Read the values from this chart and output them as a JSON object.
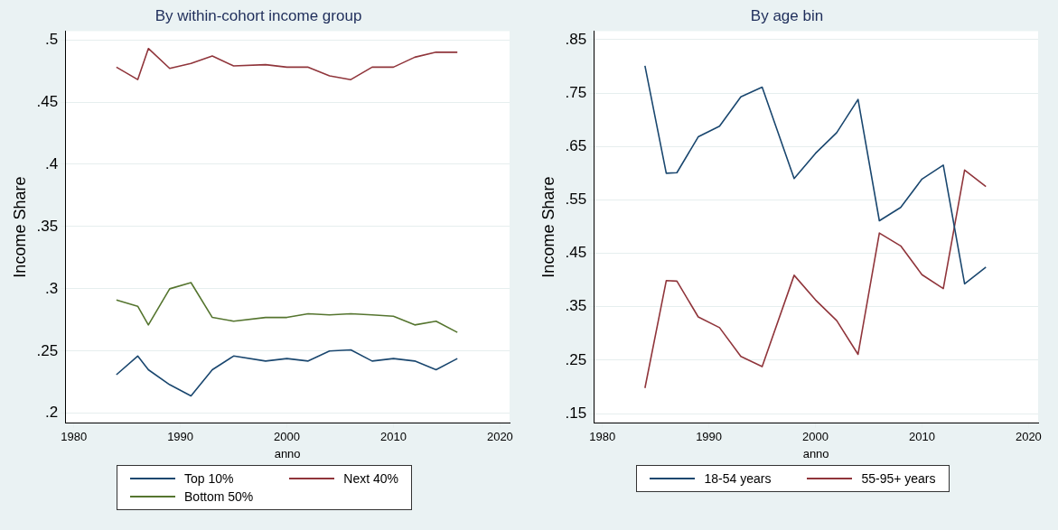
{
  "chart_data": [
    {
      "type": "line",
      "title": "By within-cohort income group",
      "xlabel": "anno",
      "ylabel": "Income Share",
      "x": [
        1984,
        1986,
        1987,
        1989,
        1991,
        1993,
        1995,
        1998,
        2000,
        2002,
        2004,
        2006,
        2008,
        2010,
        2012,
        2014,
        2016
      ],
      "series": [
        {
          "name": "Top 10%",
          "color": "#1a476f",
          "values": [
            0.231,
            0.246,
            0.235,
            0.223,
            0.214,
            0.235,
            0.246,
            0.242,
            0.244,
            0.242,
            0.25,
            0.251,
            0.242,
            0.244,
            0.242,
            0.235,
            0.244
          ]
        },
        {
          "name": "Next 40%",
          "color": "#90353b",
          "values": [
            0.478,
            0.468,
            0.493,
            0.477,
            0.481,
            0.487,
            0.479,
            0.48,
            0.478,
            0.478,
            0.471,
            0.468,
            0.478,
            0.478,
            0.486,
            0.49,
            0.49
          ]
        },
        {
          "name": "Bottom 50%",
          "color": "#55752f",
          "values": [
            0.291,
            0.286,
            0.271,
            0.3,
            0.305,
            0.277,
            0.274,
            0.277,
            0.277,
            0.28,
            0.279,
            0.28,
            0.279,
            0.278,
            0.271,
            0.274,
            0.265
          ]
        }
      ],
      "xlim": [
        1979.2,
        2020.9
      ],
      "xticks": [
        1980,
        1990,
        2000,
        2010,
        2020
      ],
      "ylim": [
        0.192,
        0.507
      ],
      "yticks": [
        {
          "value": 0.2,
          "label": ".2"
        },
        {
          "value": 0.25,
          "label": ".25"
        },
        {
          "value": 0.3,
          "label": ".3"
        },
        {
          "value": 0.35,
          "label": ".35"
        },
        {
          "value": 0.4,
          "label": ".4"
        },
        {
          "value": 0.45,
          "label": ".45"
        },
        {
          "value": 0.5,
          "label": ".5"
        }
      ],
      "grid": "y",
      "legend": "bottom",
      "marker": "none"
    },
    {
      "type": "line",
      "title": "By age bin",
      "xlabel": "anno",
      "ylabel": "Income Share",
      "x": [
        1984,
        1986,
        1987,
        1989,
        1991,
        1993,
        1995,
        1998,
        2000,
        2002,
        2004,
        2006,
        2008,
        2010,
        2012,
        2014,
        2016
      ],
      "series": [
        {
          "name": "18-54 years",
          "color": "#1a476f",
          "values": [
            0.801,
            0.6,
            0.601,
            0.668,
            0.688,
            0.743,
            0.761,
            0.59,
            0.637,
            0.676,
            0.738,
            0.511,
            0.536,
            0.589,
            0.615,
            0.393,
            0.424
          ]
        },
        {
          "name": "55-95+ years",
          "color": "#90353b",
          "values": [
            0.198,
            0.399,
            0.398,
            0.331,
            0.311,
            0.257,
            0.238,
            0.409,
            0.363,
            0.324,
            0.261,
            0.488,
            0.464,
            0.41,
            0.384,
            0.606,
            0.575
          ]
        }
      ],
      "xlim": [
        1979.2,
        2020.9
      ],
      "xticks": [
        1980,
        1990,
        2000,
        2010,
        2020
      ],
      "ylim": [
        0.132,
        0.866
      ],
      "yticks": [
        {
          "value": 0.15,
          "label": ".15"
        },
        {
          "value": 0.25,
          "label": ".25"
        },
        {
          "value": 0.35,
          "label": ".35"
        },
        {
          "value": 0.45,
          "label": ".45"
        },
        {
          "value": 0.55,
          "label": ".55"
        },
        {
          "value": 0.65,
          "label": ".65"
        },
        {
          "value": 0.75,
          "label": ".75"
        },
        {
          "value": 0.85,
          "label": ".85"
        }
      ],
      "grid": "y",
      "legend": "bottom",
      "marker": "none"
    }
  ]
}
